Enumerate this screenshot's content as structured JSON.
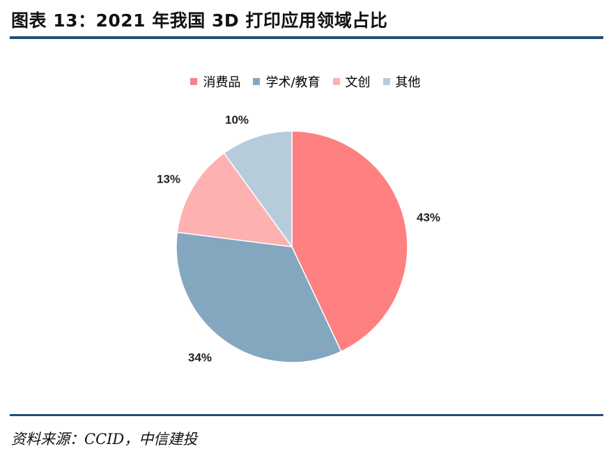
{
  "header": {
    "title": "图表 13：2021 年我国 3D 打印应用领域占比"
  },
  "footer": {
    "source": "资料来源：CCID，中信建投"
  },
  "chart_data": {
    "type": "pie",
    "title": "",
    "categories": [
      "消费品",
      "学术/教育",
      "文创",
      "其他"
    ],
    "values": [
      43,
      34,
      13,
      10
    ],
    "labels": [
      "43%",
      "34%",
      "13%",
      "10%"
    ],
    "colors": [
      "#fe8080",
      "#84a7c0",
      "#feb1b1",
      "#b6ccdb"
    ],
    "legend_position": "top",
    "start_angle": "12 o'clock",
    "direction": "clockwise"
  }
}
